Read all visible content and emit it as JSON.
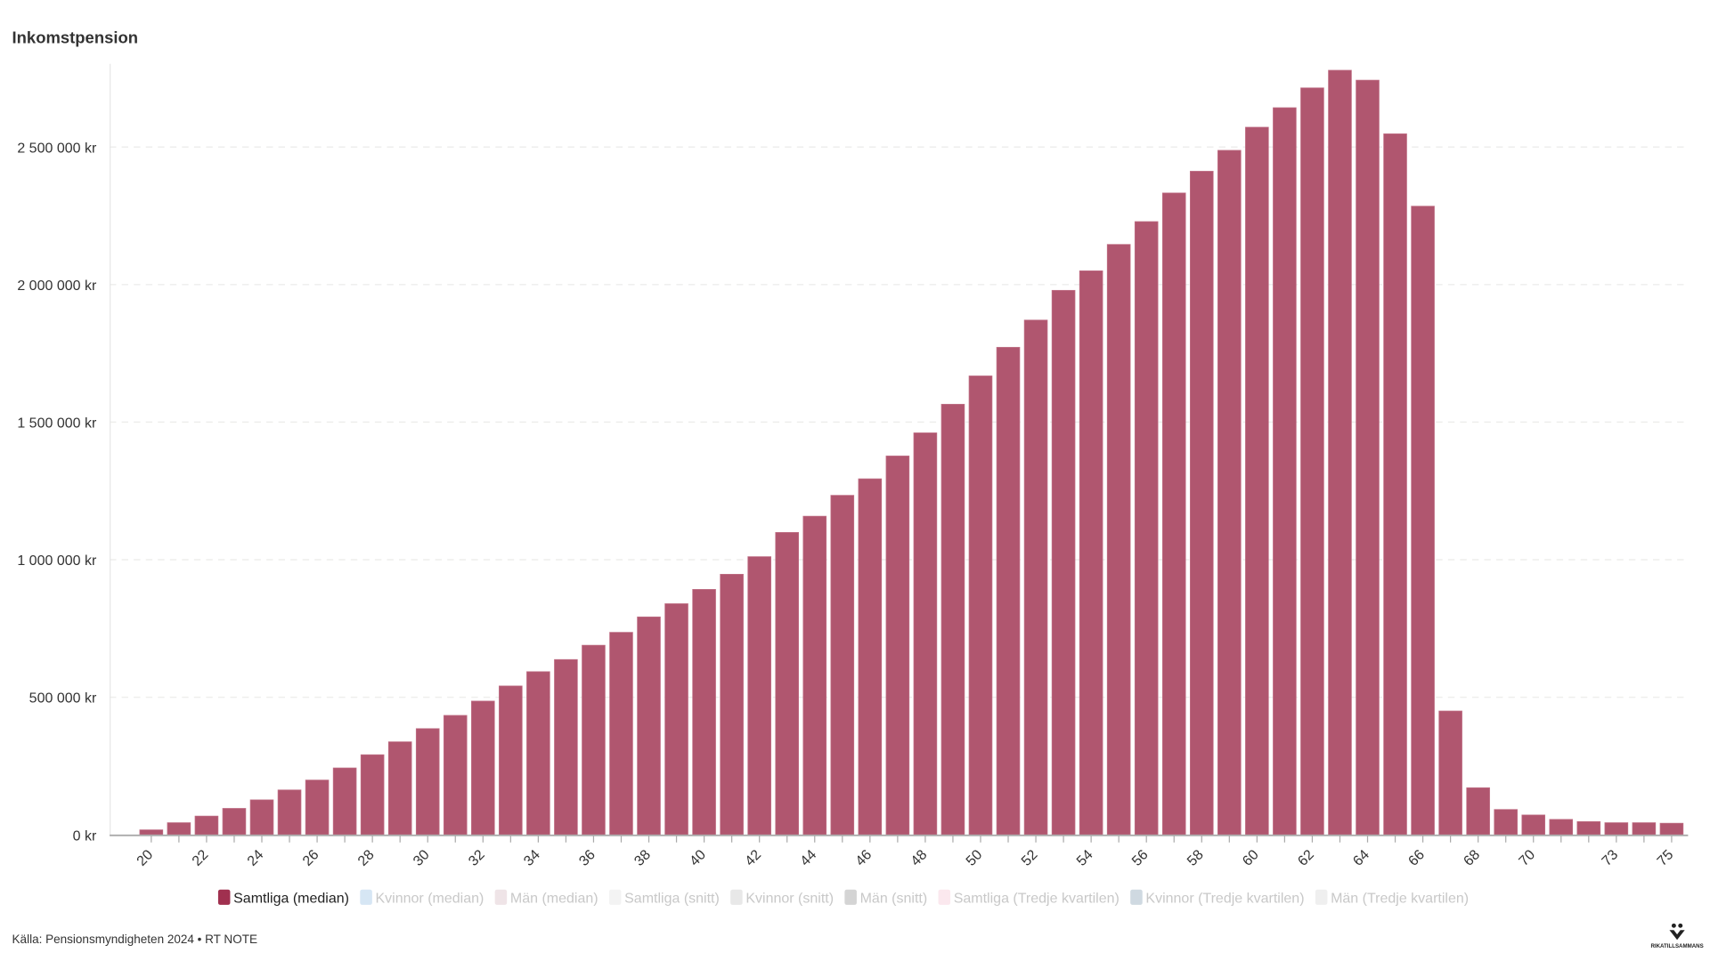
{
  "chart_data": {
    "type": "bar",
    "title": "Inkomstpension",
    "xlabel": "",
    "ylabel": "",
    "ylim": [
      0,
      2800000
    ],
    "yticks": [
      0,
      500000,
      1000000,
      1500000,
      2000000,
      2500000
    ],
    "ytick_labels": [
      "0 kr",
      "500 000 kr",
      "1 000 000 kr",
      "1 500 000 kr",
      "2 000 000 kr",
      "2 500 000 kr"
    ],
    "grid": true,
    "categories": [
      20,
      21,
      22,
      23,
      24,
      25,
      26,
      27,
      28,
      29,
      30,
      31,
      32,
      33,
      34,
      35,
      36,
      37,
      38,
      39,
      40,
      41,
      42,
      43,
      44,
      45,
      46,
      47,
      48,
      49,
      50,
      51,
      52,
      53,
      54,
      55,
      56,
      57,
      58,
      59,
      60,
      61,
      62,
      63,
      64,
      65,
      66,
      67,
      68,
      69,
      70,
      71,
      72,
      73,
      74,
      75
    ],
    "xtick_labels": [
      "20",
      "22",
      "24",
      "26",
      "28",
      "30",
      "32",
      "34",
      "36",
      "38",
      "40",
      "42",
      "44",
      "46",
      "48",
      "50",
      "52",
      "54",
      "56",
      "58",
      "60",
      "62",
      "64",
      "66",
      "68",
      "70",
      "73",
      "75"
    ],
    "series": [
      {
        "name": "Samtliga (median)",
        "color": "#a0304f",
        "active": true,
        "values": [
          18000,
          44000,
          68000,
          96000,
          127000,
          163000,
          199000,
          243000,
          291000,
          338000,
          386000,
          434000,
          486000,
          541000,
          593000,
          637000,
          689000,
          736000,
          792000,
          840000,
          892000,
          947000,
          1011000,
          1099000,
          1158000,
          1234000,
          1294000,
          1377000,
          1461000,
          1565000,
          1668000,
          1772000,
          1871000,
          1979000,
          2050000,
          2146000,
          2229000,
          2333000,
          2412000,
          2488000,
          2572000,
          2643000,
          2715000,
          2779000,
          2743000,
          2548000,
          2285000,
          450000,
          171000,
          92000,
          72000,
          56000,
          48000,
          44000,
          44000,
          42000
        ]
      },
      {
        "name": "Kvinnor (median)",
        "color": "#d6e6f4",
        "active": false
      },
      {
        "name": "Män (median)",
        "color": "#efe4e7",
        "active": false
      },
      {
        "name": "Samtliga (snitt)",
        "color": "#f3f3f3",
        "active": false
      },
      {
        "name": "Kvinnor (snitt)",
        "color": "#e8e8e8",
        "active": false
      },
      {
        "name": "Män (snitt)",
        "color": "#d4d4d4",
        "active": false
      },
      {
        "name": "Samtliga (Tredje kvartilen)",
        "color": "#fbe8ee",
        "active": false
      },
      {
        "name": "Kvinnor (Tredje kvartilen)",
        "color": "#cfd9e1",
        "active": false
      },
      {
        "name": "Män (Tredje kvartilen)",
        "color": "#efefef",
        "active": false
      }
    ],
    "legend_position": "bottom"
  },
  "footer": {
    "source": "Källa: Pensionsmyndigheten 2024 • RT NOTE",
    "logo_text": "RIKATILLSAMMANS"
  }
}
